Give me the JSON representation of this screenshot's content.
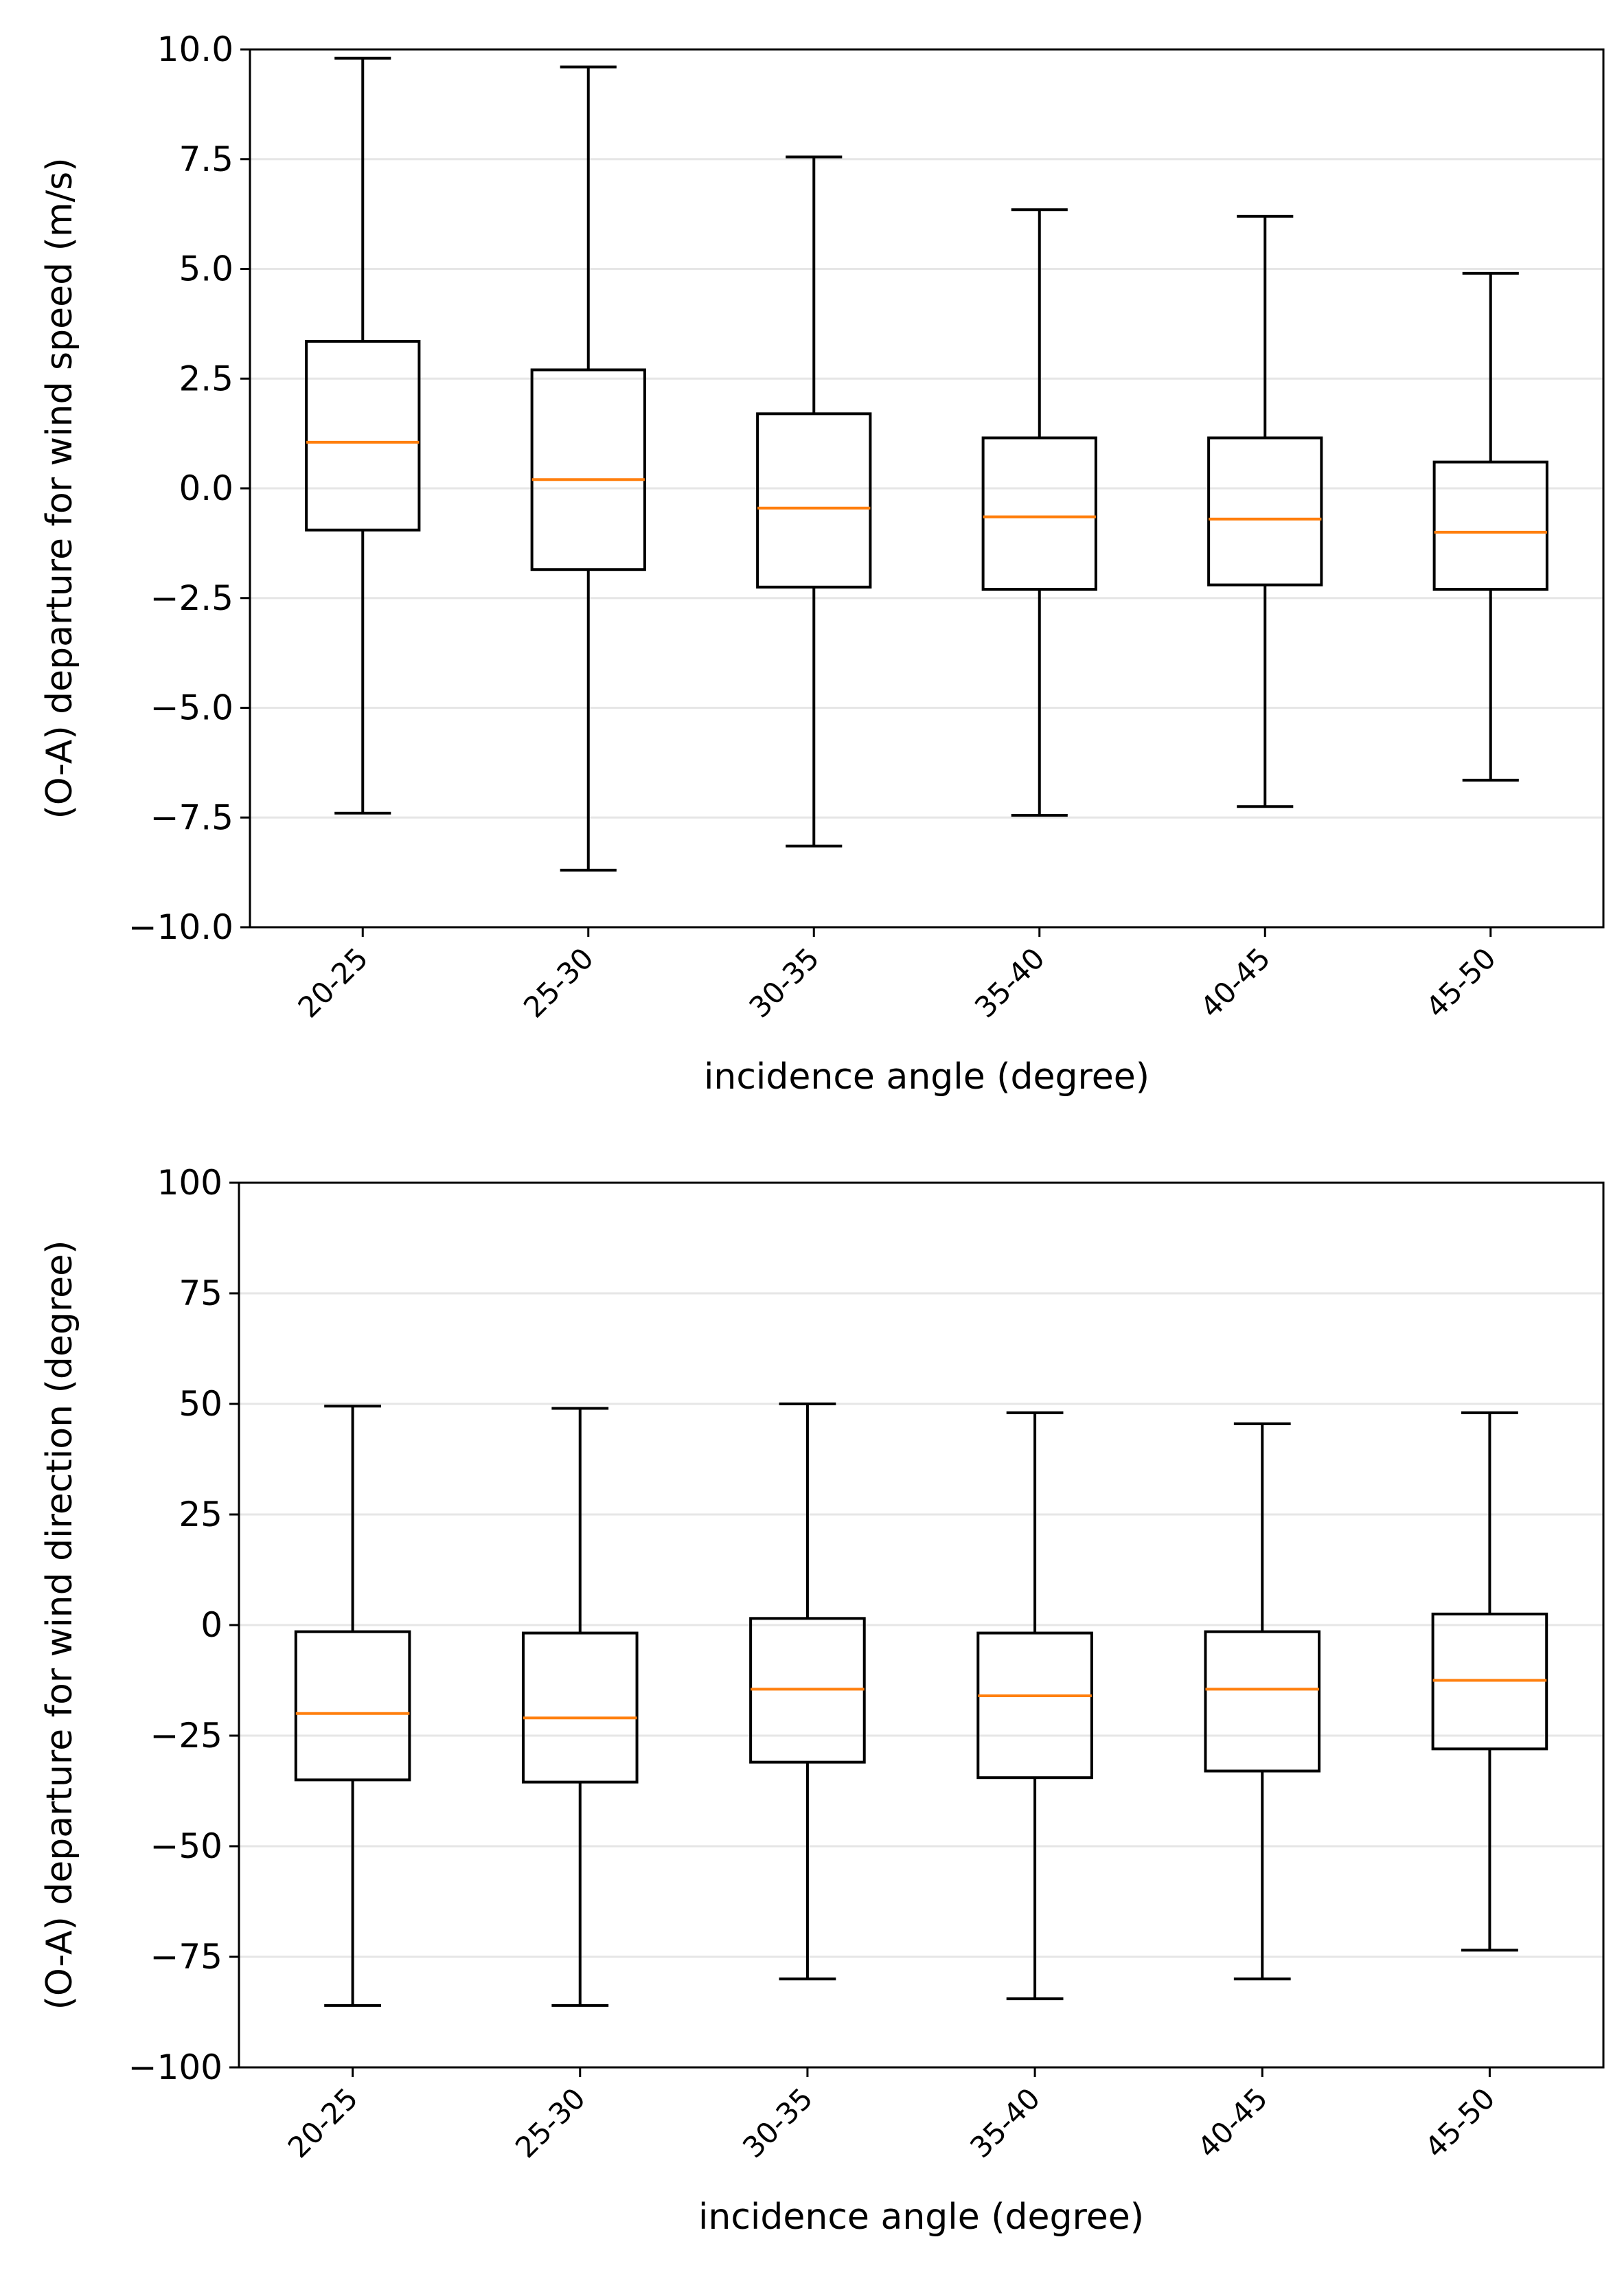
{
  "chart_data": [
    {
      "type": "box",
      "title": "",
      "xlabel": "incidence angle (degree)",
      "ylabel": "(O-A) departure for wind speed (m/s)",
      "ylim": [
        -10,
        10
      ],
      "yticks": [
        10,
        7.5,
        5,
        2.5,
        0,
        -2.5,
        -5,
        -7.5,
        -10
      ],
      "ytick_labels": [
        "10.0",
        "7.5",
        "5.0",
        "2.5",
        "0.0",
        "−2.5",
        "−5.0",
        "−7.5",
        "−10.0"
      ],
      "grid": "horizontal",
      "categories": [
        "20-25",
        "25-30",
        "30-35",
        "35-40",
        "40-45",
        "45-50"
      ],
      "boxes": [
        {
          "whisker_low": -7.4,
          "q1": -0.95,
          "median": 1.05,
          "q3": 3.35,
          "whisker_high": 9.8
        },
        {
          "whisker_low": -8.7,
          "q1": -1.85,
          "median": 0.2,
          "q3": 2.7,
          "whisker_high": 9.6
        },
        {
          "whisker_low": -8.15,
          "q1": -2.25,
          "median": -0.45,
          "q3": 1.7,
          "whisker_high": 7.55
        },
        {
          "whisker_low": -7.45,
          "q1": -2.3,
          "median": -0.65,
          "q3": 1.15,
          "whisker_high": 6.35
        },
        {
          "whisker_low": -7.25,
          "q1": -2.2,
          "median": -0.7,
          "q3": 1.15,
          "whisker_high": 6.2
        },
        {
          "whisker_low": -6.65,
          "q1": -2.3,
          "median": -1.0,
          "q3": 0.6,
          "whisker_high": 4.9
        }
      ]
    },
    {
      "type": "box",
      "title": "",
      "xlabel": "incidence angle (degree)",
      "ylabel": "(O-A) departure for wind direction (degree)",
      "ylim": [
        -100,
        100
      ],
      "yticks": [
        100,
        75,
        50,
        25,
        0,
        -25,
        -50,
        -75,
        -100
      ],
      "ytick_labels": [
        "100",
        "75",
        "50",
        "25",
        "0",
        "−25",
        "−50",
        "−75",
        "−100"
      ],
      "grid": "horizontal",
      "categories": [
        "20-25",
        "25-30",
        "30-35",
        "35-40",
        "40-45",
        "45-50"
      ],
      "boxes": [
        {
          "whisker_low": -86,
          "q1": -35,
          "median": -20,
          "q3": -1.5,
          "whisker_high": 49.5
        },
        {
          "whisker_low": -86,
          "q1": -35.5,
          "median": -21,
          "q3": -1.8,
          "whisker_high": 49
        },
        {
          "whisker_low": -80,
          "q1": -31,
          "median": -14.5,
          "q3": 1.5,
          "whisker_high": 50
        },
        {
          "whisker_low": -84.5,
          "q1": -34.5,
          "median": -16,
          "q3": -1.8,
          "whisker_high": 48
        },
        {
          "whisker_low": -80,
          "q1": -33,
          "median": -14.5,
          "q3": -1.5,
          "whisker_high": 45.5
        },
        {
          "whisker_low": -73.5,
          "q1": -28,
          "median": -12.5,
          "q3": 2.5,
          "whisker_high": 48
        }
      ]
    }
  ],
  "colors": {
    "box": "#000000",
    "median": "#ff7f0e",
    "grid": "#e6e6e6",
    "background": "#ffffff"
  }
}
